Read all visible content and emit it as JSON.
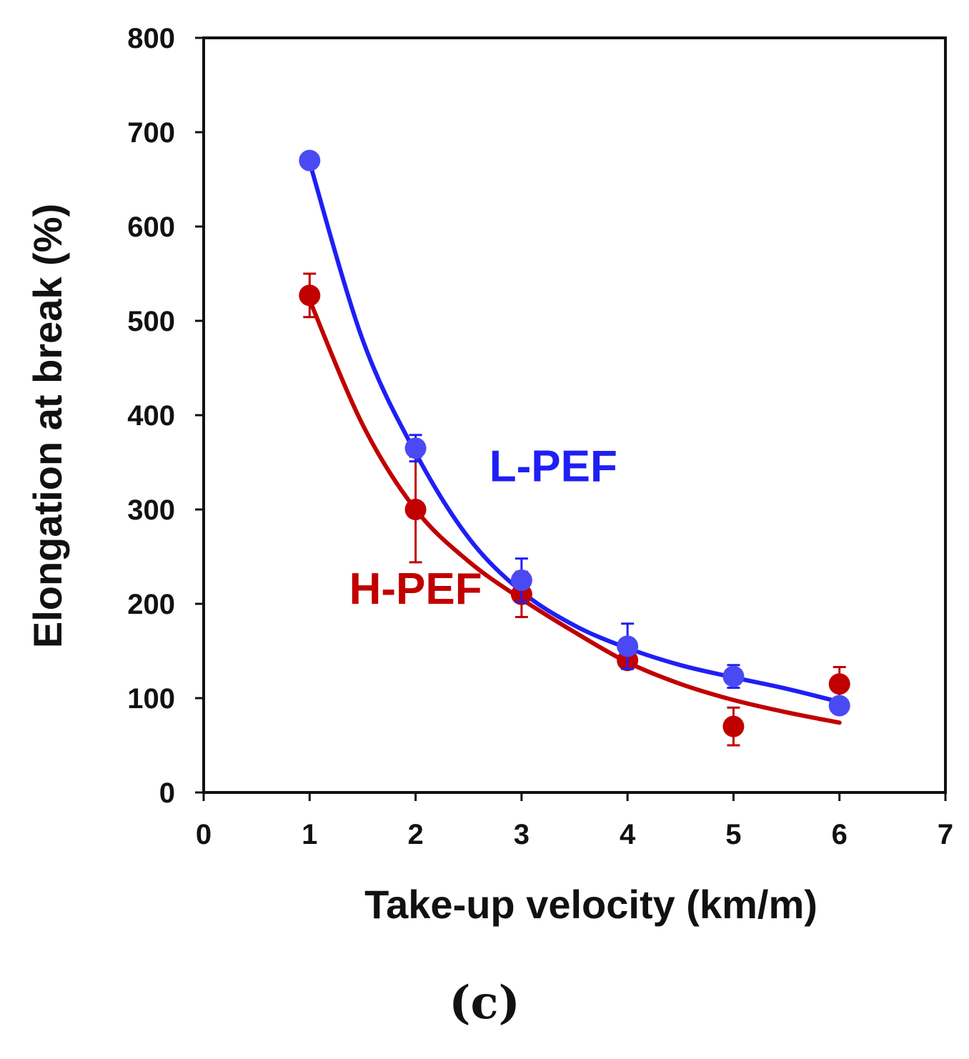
{
  "panel_label": "(c)",
  "colors": {
    "l_pef": "#1f1ff5",
    "l_pef_marker": "#4a4af5",
    "h_pef": "#c00000",
    "axis": "#111111"
  },
  "chart_data": {
    "type": "scatter",
    "title": "",
    "xlabel": "Take-up velocity (km/m)",
    "ylabel": "Elongation at break (%)",
    "xlim": [
      0,
      7
    ],
    "ylim": [
      0,
      800
    ],
    "xticks": [
      0,
      1,
      2,
      3,
      4,
      5,
      6,
      7
    ],
    "yticks": [
      0,
      100,
      200,
      300,
      400,
      500,
      600,
      700,
      800
    ],
    "series": [
      {
        "name": "L-PEF",
        "color": "#1f1ff5",
        "marker_color": "#4a4af5",
        "x": [
          1,
          2,
          3,
          4,
          5,
          6
        ],
        "y": [
          670,
          365,
          225,
          155,
          123,
          92
        ],
        "error": [
          0,
          14,
          23,
          24,
          12,
          8
        ],
        "fit_curve": {
          "x": [
            1,
            1.5,
            2,
            2.5,
            3,
            3.5,
            4,
            4.5,
            5,
            5.5,
            6
          ],
          "y": [
            668,
            480,
            360,
            270,
            213,
            177,
            153,
            135,
            122,
            110,
            96
          ]
        }
      },
      {
        "name": "H-PEF",
        "color": "#c00000",
        "marker_color": "#c00000",
        "x": [
          1,
          2,
          3,
          4,
          5,
          6
        ],
        "y": [
          527,
          300,
          210,
          140,
          70,
          115
        ],
        "error": [
          23,
          56,
          24,
          8,
          20,
          18
        ],
        "fit_curve": {
          "x": [
            1,
            1.5,
            2,
            2.5,
            3,
            3.5,
            4,
            4.5,
            5,
            5.5,
            6
          ],
          "y": [
            522,
            390,
            300,
            245,
            205,
            170,
            138,
            115,
            98,
            85,
            74
          ]
        }
      }
    ],
    "annotations": [
      {
        "text": "L-PEF",
        "series": 0,
        "x": 3.3,
        "y": 330
      },
      {
        "text": "H-PEF",
        "series": 1,
        "x": 2.0,
        "y": 200
      }
    ]
  }
}
